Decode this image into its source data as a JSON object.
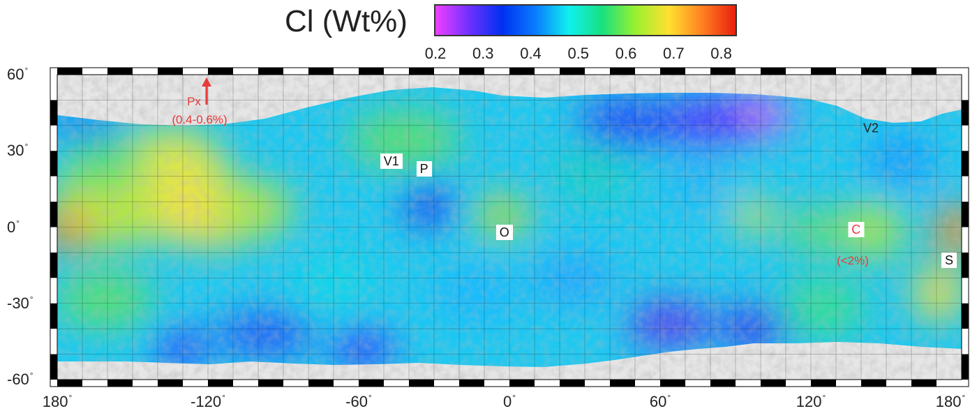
{
  "colorbar": {
    "title": "Cl (Wt%)",
    "ticks": [
      "0.2",
      "0.3",
      "0.4",
      "0.5",
      "0.6",
      "0.7",
      "0.8"
    ],
    "range": [
      0.2,
      0.83
    ],
    "colors": [
      "#f040ff",
      "#7030ff",
      "#0030f0",
      "#0a7cff",
      "#10f0f0",
      "#18e080",
      "#9af030",
      "#ffe030",
      "#ff8020",
      "#e82010"
    ]
  },
  "axes": {
    "lat_labels": [
      {
        "text": "60",
        "value": 60
      },
      {
        "text": "30",
        "value": 30
      },
      {
        "text": "0",
        "value": 0
      },
      {
        "text": "-30",
        "value": -30
      },
      {
        "text": "-60",
        "value": -60
      }
    ],
    "lon_labels": [
      {
        "text": "180",
        "value": -180
      },
      {
        "text": "-120",
        "value": -120
      },
      {
        "text": "-60",
        "value": -60
      },
      {
        "text": "0",
        "value": 0
      },
      {
        "text": "60",
        "value": 60
      },
      {
        "text": "120",
        "value": 120
      },
      {
        "text": "180",
        "value": 180
      }
    ],
    "degree_symbol": "°",
    "lat_range": [
      -60,
      60
    ],
    "lon_range": [
      -180,
      180
    ]
  },
  "sites": [
    {
      "label": "V1",
      "lon": -47,
      "lat": 26,
      "color": "black"
    },
    {
      "label": "P",
      "lon": -34,
      "lat": 23,
      "color": "black"
    },
    {
      "label": "O",
      "lon": -2,
      "lat": -2,
      "color": "black"
    },
    {
      "label": "C",
      "lon": 138,
      "lat": -1,
      "color": "red"
    },
    {
      "label": "S",
      "lon": 175,
      "lat": -13,
      "color": "black"
    }
  ],
  "annotations": {
    "px_label": "Px",
    "px_range": "(0.4-0.6%)",
    "c_range": "(<2%)",
    "v2_label": "V2"
  }
}
